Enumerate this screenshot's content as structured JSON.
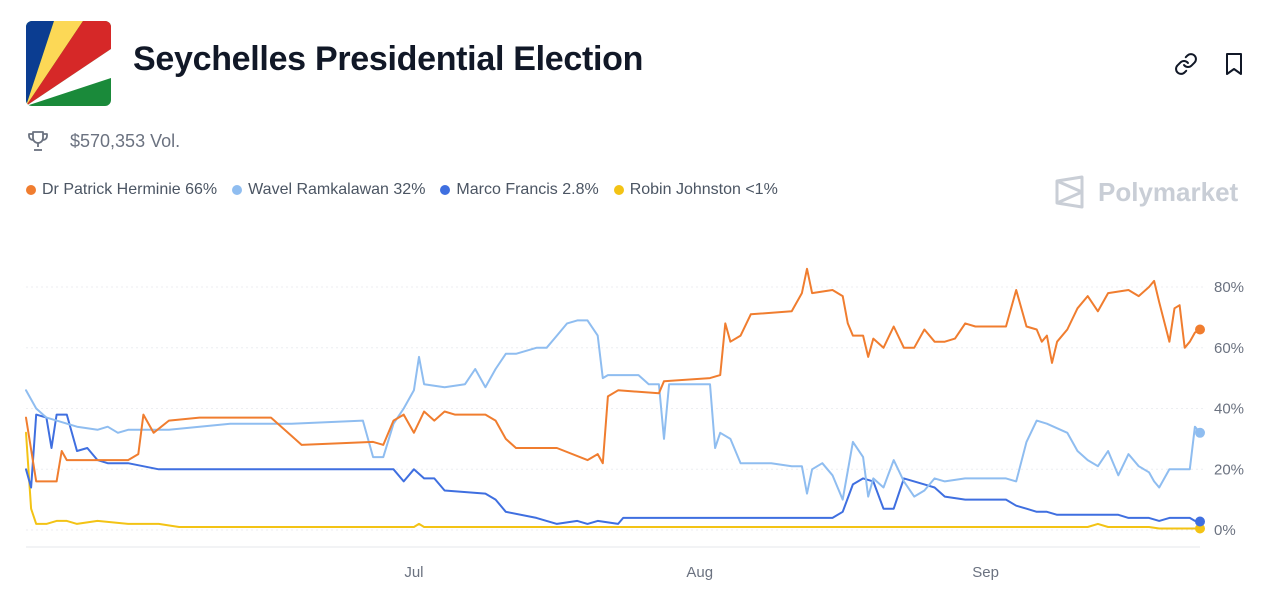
{
  "header": {
    "title": "Seychelles Presidential Election",
    "volume": "$570,353 Vol."
  },
  "brand": {
    "name": "Polymarket"
  },
  "legend": [
    {
      "label": "Dr Patrick Herminie 66%",
      "color": "#f07d2f"
    },
    {
      "label": "Wavel Ramkalawan 32%",
      "color": "#8fbdf0"
    },
    {
      "label": "Marco Francis 2.8%",
      "color": "#3f6fe0"
    },
    {
      "label": "Robin Johnston <1%",
      "color": "#f3c315"
    }
  ],
  "icons": {
    "link": "link-icon",
    "bookmark": "bookmark-icon",
    "trophy": "trophy-icon"
  },
  "chart_data": {
    "type": "line",
    "title": "",
    "xlabel": "",
    "ylabel": "",
    "x_unit": "days since Jun 1",
    "x_range": [
      0,
      115
    ],
    "ylim": [
      0,
      85
    ],
    "y_ticks": [
      0,
      20,
      40,
      60,
      80
    ],
    "y_tick_labels": [
      "0%",
      "20%",
      "40%",
      "60%",
      "80%"
    ],
    "x_ticks": [
      {
        "value": 38,
        "label": "Jul"
      },
      {
        "value": 66,
        "label": "Aug"
      },
      {
        "value": 94,
        "label": "Sep"
      }
    ],
    "series": [
      {
        "name": "Dr Patrick Herminie",
        "color": "#f07d2f",
        "points": [
          [
            0,
            37
          ],
          [
            1,
            16
          ],
          [
            3,
            16
          ],
          [
            3.5,
            26
          ],
          [
            4,
            23
          ],
          [
            10,
            23
          ],
          [
            11,
            25
          ],
          [
            11.5,
            38
          ],
          [
            12.5,
            32
          ],
          [
            14,
            36
          ],
          [
            17,
            37
          ],
          [
            24,
            37
          ],
          [
            26,
            31
          ],
          [
            27,
            28
          ],
          [
            34,
            29
          ],
          [
            35,
            28
          ],
          [
            36,
            36
          ],
          [
            37,
            38
          ],
          [
            38,
            32
          ],
          [
            39,
            39
          ],
          [
            40,
            36
          ],
          [
            41,
            39
          ],
          [
            42,
            38
          ],
          [
            45,
            38
          ],
          [
            46,
            36
          ],
          [
            47,
            30
          ],
          [
            48,
            27
          ],
          [
            52,
            27
          ],
          [
            55,
            23
          ],
          [
            56,
            25
          ],
          [
            56.5,
            22
          ],
          [
            57,
            44
          ],
          [
            58,
            46
          ],
          [
            62,
            45
          ],
          [
            62.5,
            49
          ],
          [
            67,
            50
          ],
          [
            68,
            51
          ],
          [
            68.5,
            68
          ],
          [
            69,
            62
          ],
          [
            70,
            64
          ],
          [
            71,
            71
          ],
          [
            75,
            72
          ],
          [
            76,
            78
          ],
          [
            76.5,
            86
          ],
          [
            77,
            78
          ],
          [
            79,
            79
          ],
          [
            80,
            77
          ],
          [
            80.5,
            68
          ],
          [
            81,
            64
          ],
          [
            82,
            64
          ],
          [
            82.5,
            57
          ],
          [
            83,
            63
          ],
          [
            84,
            60
          ],
          [
            85,
            67
          ],
          [
            86,
            60
          ],
          [
            87,
            60
          ],
          [
            88,
            66
          ],
          [
            89,
            62
          ],
          [
            90,
            62
          ],
          [
            91,
            63
          ],
          [
            92,
            68
          ],
          [
            93,
            67
          ],
          [
            96,
            67
          ],
          [
            97,
            79
          ],
          [
            98,
            67
          ],
          [
            99,
            66
          ],
          [
            99.5,
            62
          ],
          [
            100,
            64
          ],
          [
            100.5,
            55
          ],
          [
            101,
            62
          ],
          [
            102,
            66
          ],
          [
            103,
            73
          ],
          [
            104,
            77
          ],
          [
            105,
            72
          ],
          [
            106,
            78
          ],
          [
            108,
            79
          ],
          [
            109,
            77
          ],
          [
            110,
            80
          ],
          [
            110.5,
            82
          ],
          [
            111,
            75
          ],
          [
            112,
            62
          ],
          [
            112.5,
            73
          ],
          [
            113,
            74
          ],
          [
            113.5,
            60
          ],
          [
            114,
            62
          ],
          [
            114.5,
            65
          ],
          [
            115,
            66
          ]
        ]
      },
      {
        "name": "Wavel Ramkalawan",
        "color": "#8fbdf0",
        "points": [
          [
            0,
            46
          ],
          [
            1,
            40
          ],
          [
            2,
            37
          ],
          [
            3,
            36
          ],
          [
            5,
            34
          ],
          [
            7,
            33
          ],
          [
            8,
            34
          ],
          [
            9,
            32
          ],
          [
            10,
            33
          ],
          [
            14,
            33
          ],
          [
            20,
            35
          ],
          [
            26,
            35
          ],
          [
            33,
            36
          ],
          [
            34,
            24
          ],
          [
            35,
            24
          ],
          [
            36,
            35
          ],
          [
            37,
            40
          ],
          [
            38,
            46
          ],
          [
            38.5,
            57
          ],
          [
            39,
            48
          ],
          [
            41,
            47
          ],
          [
            43,
            48
          ],
          [
            44,
            53
          ],
          [
            45,
            47
          ],
          [
            46,
            53
          ],
          [
            47,
            58
          ],
          [
            48,
            58
          ],
          [
            50,
            60
          ],
          [
            51,
            60
          ],
          [
            52,
            64
          ],
          [
            53,
            68
          ],
          [
            54,
            69
          ],
          [
            55,
            69
          ],
          [
            56,
            64
          ],
          [
            56.5,
            50
          ],
          [
            57,
            51
          ],
          [
            60,
            51
          ],
          [
            61,
            48
          ],
          [
            62,
            48
          ],
          [
            62.5,
            30
          ],
          [
            63,
            48
          ],
          [
            64,
            48
          ],
          [
            66,
            48
          ],
          [
            67,
            48
          ],
          [
            67.5,
            27
          ],
          [
            68,
            32
          ],
          [
            69,
            30
          ],
          [
            70,
            22
          ],
          [
            71,
            22
          ],
          [
            73,
            22
          ],
          [
            75,
            21
          ],
          [
            76,
            21
          ],
          [
            76.5,
            12
          ],
          [
            77,
            20
          ],
          [
            78,
            22
          ],
          [
            79,
            18
          ],
          [
            80,
            10
          ],
          [
            81,
            29
          ],
          [
            82,
            24
          ],
          [
            82.5,
            11
          ],
          [
            83,
            17
          ],
          [
            84,
            14
          ],
          [
            85,
            23
          ],
          [
            86,
            16
          ],
          [
            87,
            11
          ],
          [
            88,
            13
          ],
          [
            89,
            17
          ],
          [
            90,
            16
          ],
          [
            92,
            17
          ],
          [
            96,
            17
          ],
          [
            97,
            16
          ],
          [
            98,
            29
          ],
          [
            99,
            36
          ],
          [
            100,
            35
          ],
          [
            102,
            32
          ],
          [
            103,
            26
          ],
          [
            104,
            23
          ],
          [
            105,
            21
          ],
          [
            106,
            26
          ],
          [
            107,
            18
          ],
          [
            108,
            25
          ],
          [
            109,
            21
          ],
          [
            110,
            19
          ],
          [
            110.5,
            16
          ],
          [
            111,
            14
          ],
          [
            112,
            20
          ],
          [
            113,
            20
          ],
          [
            114,
            20
          ],
          [
            114.5,
            34
          ],
          [
            115,
            32
          ]
        ]
      },
      {
        "name": "Marco Francis",
        "color": "#3f6fe0",
        "points": [
          [
            0,
            20
          ],
          [
            0.5,
            14
          ],
          [
            1,
            38
          ],
          [
            2,
            37
          ],
          [
            2.5,
            27
          ],
          [
            3,
            38
          ],
          [
            4,
            38
          ],
          [
            5,
            26
          ],
          [
            6,
            27
          ],
          [
            7,
            23
          ],
          [
            8,
            22
          ],
          [
            10,
            22
          ],
          [
            13,
            20
          ],
          [
            20,
            20
          ],
          [
            28,
            20
          ],
          [
            30,
            20
          ],
          [
            36,
            20
          ],
          [
            37,
            16
          ],
          [
            38,
            20
          ],
          [
            39,
            17
          ],
          [
            40,
            17
          ],
          [
            41,
            13
          ],
          [
            45,
            12
          ],
          [
            46,
            10
          ],
          [
            47,
            6
          ],
          [
            50,
            4
          ],
          [
            51,
            3
          ],
          [
            52,
            2
          ],
          [
            54,
            3
          ],
          [
            55,
            2
          ],
          [
            56,
            3
          ],
          [
            58,
            2
          ],
          [
            58.5,
            4
          ],
          [
            62,
            4
          ],
          [
            66,
            4
          ],
          [
            67,
            4
          ],
          [
            68,
            4
          ],
          [
            70,
            4
          ],
          [
            73,
            4
          ],
          [
            76,
            4
          ],
          [
            79,
            4
          ],
          [
            80,
            6
          ],
          [
            81,
            15
          ],
          [
            82,
            17
          ],
          [
            83,
            16
          ],
          [
            84,
            7
          ],
          [
            85,
            7
          ],
          [
            86,
            17
          ],
          [
            87,
            16
          ],
          [
            88,
            15
          ],
          [
            89,
            14
          ],
          [
            90,
            11
          ],
          [
            92,
            10
          ],
          [
            96,
            10
          ],
          [
            97,
            8
          ],
          [
            98,
            7
          ],
          [
            99,
            6
          ],
          [
            100,
            6
          ],
          [
            101,
            5
          ],
          [
            104,
            5
          ],
          [
            105,
            5
          ],
          [
            107,
            5
          ],
          [
            108,
            4
          ],
          [
            110,
            4
          ],
          [
            111,
            3
          ],
          [
            112,
            4
          ],
          [
            114,
            4
          ],
          [
            114.5,
            3
          ],
          [
            115,
            2.8
          ]
        ]
      },
      {
        "name": "Robin Johnston",
        "color": "#f3c315",
        "points": [
          [
            0,
            32
          ],
          [
            0.5,
            7
          ],
          [
            1,
            2
          ],
          [
            2,
            2
          ],
          [
            3,
            3
          ],
          [
            4,
            3
          ],
          [
            5,
            2
          ],
          [
            7,
            3
          ],
          [
            10,
            2
          ],
          [
            13,
            2
          ],
          [
            15,
            1
          ],
          [
            20,
            1
          ],
          [
            30,
            1
          ],
          [
            38,
            1
          ],
          [
            38.5,
            2
          ],
          [
            39,
            1
          ],
          [
            50,
            1
          ],
          [
            60,
            1
          ],
          [
            70,
            1
          ],
          [
            80,
            1
          ],
          [
            90,
            1
          ],
          [
            100,
            1
          ],
          [
            104,
            1
          ],
          [
            105,
            2
          ],
          [
            106,
            1
          ],
          [
            110,
            1
          ],
          [
            111,
            0.5
          ],
          [
            114,
            0.5
          ],
          [
            115,
            0.5
          ]
        ]
      }
    ]
  }
}
